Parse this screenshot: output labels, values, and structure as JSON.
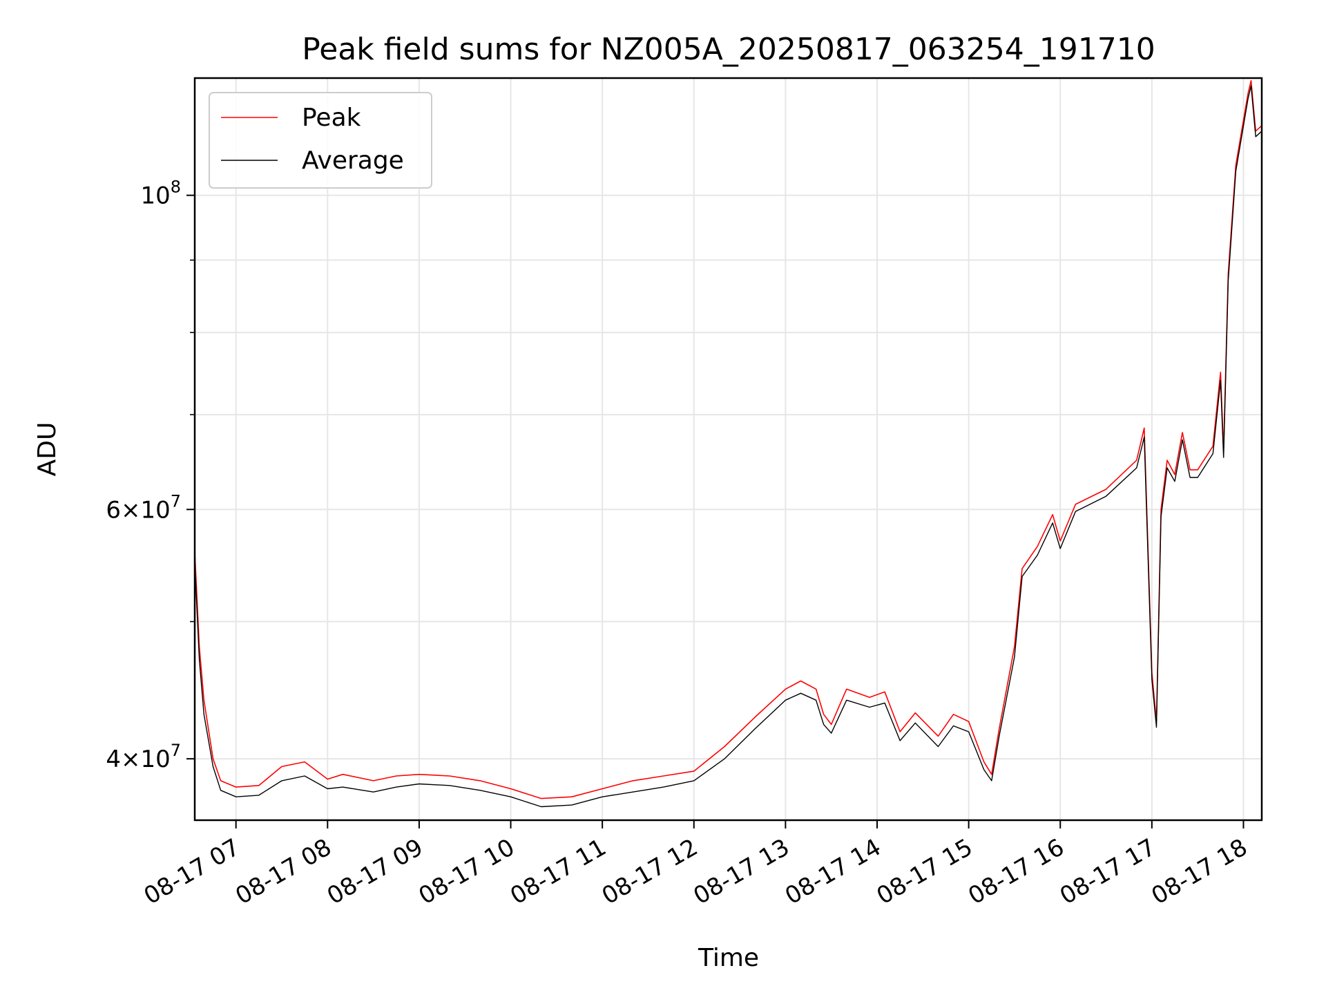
{
  "chart_data": {
    "type": "line",
    "title": "Peak field sums for NZ005A_20250817_063254_191710",
    "xlabel": "Time",
    "ylabel": "ADU",
    "yscale": "log",
    "ylim": [
      36200000,
      121000000
    ],
    "xlim": [
      "2025-08-17 06:33",
      "2025-08-17 18:12"
    ],
    "grid": true,
    "legend_position": "upper-left",
    "x_ticks": [
      "08-17 07",
      "08-17 08",
      "08-17 09",
      "08-17 10",
      "08-17 11",
      "08-17 12",
      "08-17 13",
      "08-17 14",
      "08-17 15",
      "08-17 16",
      "08-17 17",
      "08-17 18"
    ],
    "y_ticks": [
      {
        "value": 40000000,
        "mantissa": "4",
        "exponent": "7"
      },
      {
        "value": 60000000,
        "mantissa": "6",
        "exponent": "7"
      },
      {
        "value": 100000000,
        "mantissa": "",
        "exponent": "8"
      }
    ],
    "series": [
      {
        "name": "Peak",
        "color": "#ff0000",
        "x": [
          "2025-08-17 06:33",
          "2025-08-17 06:36",
          "2025-08-17 06:39",
          "2025-08-17 06:45",
          "2025-08-17 06:50",
          "2025-08-17 07:00",
          "2025-08-17 07:15",
          "2025-08-17 07:30",
          "2025-08-17 07:45",
          "2025-08-17 08:00",
          "2025-08-17 08:10",
          "2025-08-17 08:30",
          "2025-08-17 08:45",
          "2025-08-17 09:00",
          "2025-08-17 09:20",
          "2025-08-17 09:40",
          "2025-08-17 10:00",
          "2025-08-17 10:20",
          "2025-08-17 10:40",
          "2025-08-17 11:00",
          "2025-08-17 11:20",
          "2025-08-17 11:40",
          "2025-08-17 12:00",
          "2025-08-17 12:20",
          "2025-08-17 12:40",
          "2025-08-17 13:00",
          "2025-08-17 13:10",
          "2025-08-17 13:20",
          "2025-08-17 13:25",
          "2025-08-17 13:30",
          "2025-08-17 13:40",
          "2025-08-17 13:55",
          "2025-08-17 14:05",
          "2025-08-17 14:15",
          "2025-08-17 14:25",
          "2025-08-17 14:40",
          "2025-08-17 14:50",
          "2025-08-17 15:00",
          "2025-08-17 15:10",
          "2025-08-17 15:15",
          "2025-08-17 15:20",
          "2025-08-17 15:30",
          "2025-08-17 15:35",
          "2025-08-17 15:45",
          "2025-08-17 15:55",
          "2025-08-17 16:00",
          "2025-08-17 16:10",
          "2025-08-17 16:30",
          "2025-08-17 16:50",
          "2025-08-17 16:55",
          "2025-08-17 17:00",
          "2025-08-17 17:03",
          "2025-08-17 17:06",
          "2025-08-17 17:10",
          "2025-08-17 17:15",
          "2025-08-17 17:20",
          "2025-08-17 17:25",
          "2025-08-17 17:30",
          "2025-08-17 17:40",
          "2025-08-17 17:45",
          "2025-08-17 17:47",
          "2025-08-17 17:50",
          "2025-08-17 17:55",
          "2025-08-17 18:00",
          "2025-08-17 18:03",
          "2025-08-17 18:05",
          "2025-08-17 18:08",
          "2025-08-17 18:12"
        ],
        "values": [
          56000000,
          48000000,
          44000000,
          40000000,
          38600000,
          38200000,
          38300000,
          39500000,
          39800000,
          38700000,
          39000000,
          38600000,
          38900000,
          39000000,
          38900000,
          38600000,
          38100000,
          37500000,
          37600000,
          38100000,
          38600000,
          38900000,
          39200000,
          40800000,
          42800000,
          44800000,
          45400000,
          44800000,
          43000000,
          42300000,
          44800000,
          44200000,
          44600000,
          41800000,
          43100000,
          41500000,
          43000000,
          42500000,
          39800000,
          39000000,
          42000000,
          48000000,
          54500000,
          56500000,
          59500000,
          57000000,
          60500000,
          62000000,
          65000000,
          68500000,
          46000000,
          42500000,
          60000000,
          65000000,
          63500000,
          68000000,
          64000000,
          64000000,
          66500000,
          75000000,
          66000000,
          88000000,
          105000000,
          113000000,
          118000000,
          120500000,
          111000000,
          112000000
        ]
      },
      {
        "name": "Average",
        "color": "#000000",
        "x": [
          "2025-08-17 06:33",
          "2025-08-17 06:36",
          "2025-08-17 06:39",
          "2025-08-17 06:45",
          "2025-08-17 06:50",
          "2025-08-17 07:00",
          "2025-08-17 07:15",
          "2025-08-17 07:30",
          "2025-08-17 07:45",
          "2025-08-17 08:00",
          "2025-08-17 08:10",
          "2025-08-17 08:30",
          "2025-08-17 08:45",
          "2025-08-17 09:00",
          "2025-08-17 09:20",
          "2025-08-17 09:40",
          "2025-08-17 10:00",
          "2025-08-17 10:20",
          "2025-08-17 10:40",
          "2025-08-17 11:00",
          "2025-08-17 11:20",
          "2025-08-17 11:40",
          "2025-08-17 12:00",
          "2025-08-17 12:20",
          "2025-08-17 12:40",
          "2025-08-17 13:00",
          "2025-08-17 13:10",
          "2025-08-17 13:20",
          "2025-08-17 13:25",
          "2025-08-17 13:30",
          "2025-08-17 13:40",
          "2025-08-17 13:55",
          "2025-08-17 14:05",
          "2025-08-17 14:15",
          "2025-08-17 14:25",
          "2025-08-17 14:40",
          "2025-08-17 14:50",
          "2025-08-17 15:00",
          "2025-08-17 15:10",
          "2025-08-17 15:15",
          "2025-08-17 15:20",
          "2025-08-17 15:30",
          "2025-08-17 15:35",
          "2025-08-17 15:45",
          "2025-08-17 15:55",
          "2025-08-17 16:00",
          "2025-08-17 16:10",
          "2025-08-17 16:30",
          "2025-08-17 16:50",
          "2025-08-17 16:55",
          "2025-08-17 17:00",
          "2025-08-17 17:03",
          "2025-08-17 17:06",
          "2025-08-17 17:10",
          "2025-08-17 17:15",
          "2025-08-17 17:20",
          "2025-08-17 17:25",
          "2025-08-17 17:30",
          "2025-08-17 17:40",
          "2025-08-17 17:45",
          "2025-08-17 17:47",
          "2025-08-17 17:50",
          "2025-08-17 17:55",
          "2025-08-17 18:00",
          "2025-08-17 18:03",
          "2025-08-17 18:05",
          "2025-08-17 18:08",
          "2025-08-17 18:12"
        ],
        "values": [
          55000000,
          47000000,
          43000000,
          39500000,
          38000000,
          37600000,
          37700000,
          38600000,
          38900000,
          38100000,
          38200000,
          37900000,
          38200000,
          38400000,
          38300000,
          38000000,
          37600000,
          37000000,
          37100000,
          37600000,
          37900000,
          38200000,
          38600000,
          40000000,
          42000000,
          44000000,
          44500000,
          44000000,
          42300000,
          41700000,
          44000000,
          43500000,
          43800000,
          41200000,
          42400000,
          40800000,
          42200000,
          41800000,
          39300000,
          38600000,
          41500000,
          47200000,
          53800000,
          55700000,
          58700000,
          56300000,
          59800000,
          61300000,
          64200000,
          67500000,
          45500000,
          42100000,
          59300000,
          64200000,
          62800000,
          67200000,
          63200000,
          63200000,
          65700000,
          74000000,
          65300000,
          87000000,
          104000000,
          112000000,
          117000000,
          119500000,
          110000000,
          111000000
        ]
      }
    ]
  }
}
